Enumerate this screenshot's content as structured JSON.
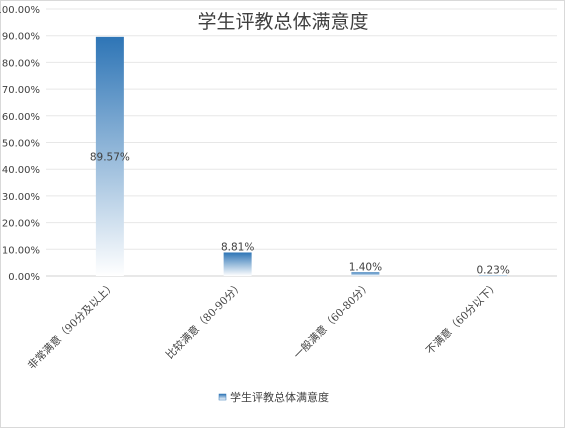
{
  "chart_data": {
    "type": "bar",
    "title": "学生评教总体满意度",
    "categories": [
      "非常满意（90分及以上）",
      "比较满意（80-90分）",
      "一般满意（60-80分）",
      "不满意（60分以下）"
    ],
    "series": [
      {
        "name": "学生评教总体满意度",
        "values": [
          89.57,
          8.81,
          1.4,
          0.23
        ]
      }
    ],
    "data_labels": [
      "89.57%",
      "8.81%",
      "1.40%",
      "0.23%"
    ],
    "yticks": [
      "0.00%",
      "10.00%",
      "20.00%",
      "30.00%",
      "40.00%",
      "50.00%",
      "60.00%",
      "70.00%",
      "80.00%",
      "90.00%",
      "100.00%"
    ],
    "ylim": [
      0,
      100
    ],
    "grid": true,
    "legend": "bottom",
    "colors": {
      "bar_top": "#2e75b6",
      "bar_bottom": "#ffffff",
      "grid": "#e7e7e7",
      "text": "#404040"
    }
  }
}
